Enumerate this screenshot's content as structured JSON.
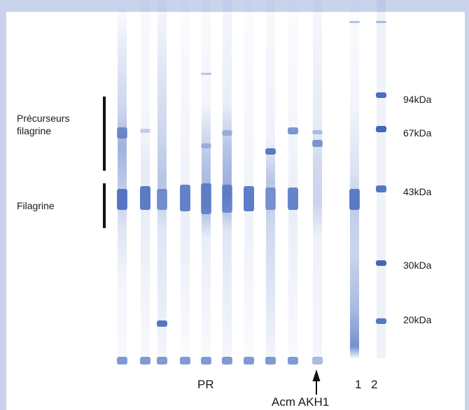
{
  "labels": {
    "precursors_line1": "Précurseurs",
    "precursors_line2": "filagrine",
    "filaggrin": "Filagrine",
    "pr": "PR",
    "lane_1": "1",
    "lane_2": "2",
    "antibody": "Acm AKH1"
  },
  "markers": [
    "94kDa",
    "67kDa",
    "43kDa",
    "30kDa",
    "20kDa"
  ],
  "colors": {
    "background": "#c9d4ec",
    "band": "#2d56b5",
    "text": "#1a1a1a"
  }
}
